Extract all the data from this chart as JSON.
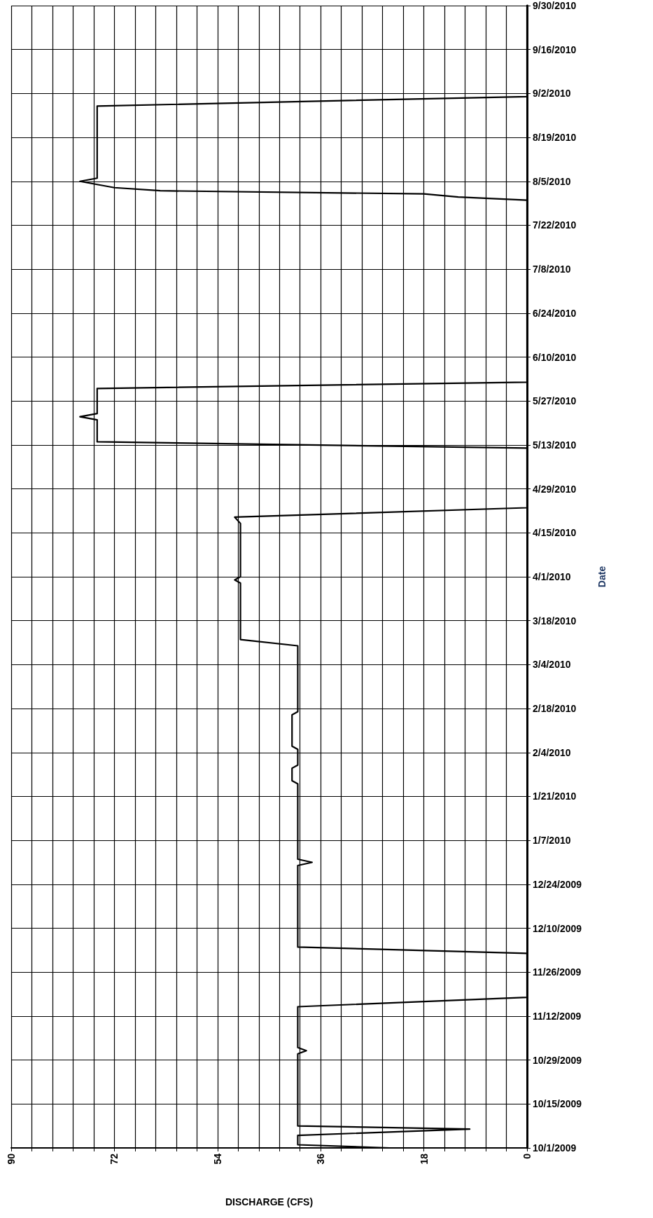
{
  "chart_data": {
    "type": "line",
    "orientation": "horizontal",
    "xlabel": "DISCHARGE (CFS)",
    "ylabel": "Date",
    "x": [
      "2009-10-01",
      "2009-10-02",
      "2009-10-05",
      "2009-10-07",
      "2009-10-08",
      "2009-10-31",
      "2009-11-01",
      "2009-11-02",
      "2009-11-15",
      "2009-11-18",
      "2009-12-02",
      "2009-12-04",
      "2009-12-30",
      "2009-12-31",
      "2010-01-01",
      "2010-01-25",
      "2010-01-26",
      "2010-01-30",
      "2010-01-31",
      "2010-02-05",
      "2010-02-06",
      "2010-02-16",
      "2010-02-17",
      "2010-03-10",
      "2010-03-12",
      "2010-03-30",
      "2010-03-31",
      "2010-04-01",
      "2010-04-18",
      "2010-04-20",
      "2010-04-23",
      "2010-05-12",
      "2010-05-14",
      "2010-05-21",
      "2010-05-22",
      "2010-05-23",
      "2010-05-31",
      "2010-06-02",
      "2010-07-30",
      "2010-07-31",
      "2010-08-01",
      "2010-08-02",
      "2010-08-03",
      "2010-08-04",
      "2010-08-05",
      "2010-08-06",
      "2010-08-29",
      "2010-09-01",
      "2010-09-30"
    ],
    "series": [
      {
        "color": "#000000",
        "values": [
          24,
          40,
          40,
          10,
          40,
          40,
          38.5,
          40,
          40,
          0,
          0,
          40,
          40,
          37.5,
          40,
          40,
          41,
          41,
          40,
          40,
          41,
          41,
          40,
          40,
          50,
          50,
          51,
          50,
          50,
          51,
          0,
          0,
          75,
          75,
          78,
          75,
          75,
          0,
          0,
          12,
          18,
          64,
          72,
          75,
          78,
          75,
          75,
          0,
          0
        ]
      }
    ],
    "ylim": [
      "2009-10-01",
      "2010-09-30"
    ],
    "yticks": [
      {
        "value": "2009-10-01",
        "label": "10/1/2009"
      },
      {
        "value": "2009-10-15",
        "label": "10/15/2009"
      },
      {
        "value": "2009-10-29",
        "label": "10/29/2009"
      },
      {
        "value": "2009-11-12",
        "label": "11/12/2009"
      },
      {
        "value": "2009-11-26",
        "label": "11/26/2009"
      },
      {
        "value": "2009-12-10",
        "label": "12/10/2009"
      },
      {
        "value": "2009-12-24",
        "label": "12/24/2009"
      },
      {
        "value": "2010-01-07",
        "label": "1/7/2010"
      },
      {
        "value": "2010-01-21",
        "label": "1/21/2010"
      },
      {
        "value": "2010-02-04",
        "label": "2/4/2010"
      },
      {
        "value": "2010-02-18",
        "label": "2/18/2010"
      },
      {
        "value": "2010-03-04",
        "label": "3/4/2010"
      },
      {
        "value": "2010-03-18",
        "label": "3/18/2010"
      },
      {
        "value": "2010-04-01",
        "label": "4/1/2010"
      },
      {
        "value": "2010-04-15",
        "label": "4/15/2010"
      },
      {
        "value": "2010-04-29",
        "label": "4/29/2010"
      },
      {
        "value": "2010-05-13",
        "label": "5/13/2010"
      },
      {
        "value": "2010-05-27",
        "label": "5/27/2010"
      },
      {
        "value": "2010-06-10",
        "label": "6/10/2010"
      },
      {
        "value": "2010-06-24",
        "label": "6/24/2010"
      },
      {
        "value": "2010-07-08",
        "label": "7/8/2010"
      },
      {
        "value": "2010-07-22",
        "label": "7/22/2010"
      },
      {
        "value": "2010-08-05",
        "label": "8/5/2010"
      },
      {
        "value": "2010-08-19",
        "label": "8/19/2010"
      },
      {
        "value": "2010-09-02",
        "label": "9/2/2010"
      },
      {
        "value": "2010-09-16",
        "label": "9/16/2010"
      },
      {
        "value": "2010-09-30",
        "label": "9/30/2010"
      }
    ],
    "xlim": [
      90,
      0
    ],
    "xticks": [
      90,
      {
        "value": 86.4,
        "label": null
      },
      {
        "value": 82.8,
        "label": null
      },
      {
        "value": 79.2,
        "label": null
      },
      {
        "value": 75.6,
        "label": null
      },
      72,
      {
        "value": 68.4,
        "label": null
      },
      {
        "value": 64.8,
        "label": null
      },
      {
        "value": 61.2,
        "label": null
      },
      {
        "value": 57.6,
        "label": null
      },
      54,
      {
        "value": 50.4,
        "label": null
      },
      {
        "value": 46.8,
        "label": null
      },
      {
        "value": 43.2,
        "label": null
      },
      {
        "value": 39.6,
        "label": null
      },
      36,
      {
        "value": 32.4,
        "label": null
      },
      {
        "value": 28.8,
        "label": null
      },
      {
        "value": 25.2,
        "label": null
      },
      {
        "value": 21.6,
        "label": null
      },
      18,
      {
        "value": 14.4,
        "label": null
      },
      {
        "value": 10.8,
        "label": null
      },
      {
        "value": 7.2,
        "label": null
      },
      {
        "value": 3.6,
        "label": null
      },
      0
    ],
    "grid": true,
    "marker": "none",
    "line_style": "solid"
  }
}
